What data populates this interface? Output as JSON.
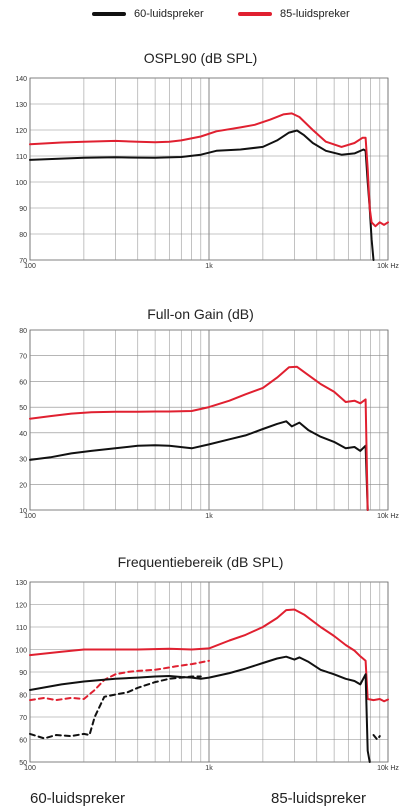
{
  "legend": {
    "series_a": "60-luidspreker",
    "series_b": "85-luidspreker",
    "color_a": "#111111",
    "color_b": "#e02030"
  },
  "footer": {
    "left": "60-luidspreker",
    "right": "85-luidspreker"
  },
  "chart_data": [
    {
      "type": "line",
      "title": "OSPL90 (dB SPL)",
      "xscale": "log",
      "xlim": [
        100,
        10000
      ],
      "ylim": [
        70,
        140
      ],
      "xticks": [
        "100",
        "1k",
        "10k Hz"
      ],
      "yticks": [
        70,
        80,
        90,
        100,
        110,
        120,
        130,
        140
      ],
      "series": [
        {
          "name": "60-luidspreker",
          "style": "solid",
          "color": "#111111",
          "points": [
            [
              100,
              108.5
            ],
            [
              150,
              109
            ],
            [
              200,
              109.3
            ],
            [
              300,
              109.5
            ],
            [
              400,
              109.4
            ],
            [
              500,
              109.3
            ],
            [
              700,
              109.6
            ],
            [
              900,
              110.5
            ],
            [
              1100,
              112
            ],
            [
              1500,
              112.5
            ],
            [
              2000,
              113.5
            ],
            [
              2400,
              116
            ],
            [
              2800,
              119
            ],
            [
              3100,
              119.8
            ],
            [
              3400,
              118
            ],
            [
              3800,
              115
            ],
            [
              4500,
              112
            ],
            [
              5500,
              110.5
            ],
            [
              6500,
              111
            ],
            [
              7300,
              112.5
            ],
            [
              7500,
              112
            ],
            [
              7700,
              100
            ],
            [
              7900,
              90
            ],
            [
              8100,
              78
            ],
            [
              8300,
              70
            ]
          ]
        },
        {
          "name": "85-luidspreker",
          "style": "solid",
          "color": "#e02030",
          "points": [
            [
              100,
              114.5
            ],
            [
              150,
              115.2
            ],
            [
              200,
              115.5
            ],
            [
              300,
              115.8
            ],
            [
              400,
              115.5
            ],
            [
              500,
              115.3
            ],
            [
              600,
              115.5
            ],
            [
              700,
              116
            ],
            [
              900,
              117.5
            ],
            [
              1100,
              119.5
            ],
            [
              1500,
              121
            ],
            [
              1800,
              122
            ],
            [
              2200,
              124
            ],
            [
              2600,
              126
            ],
            [
              2900,
              126.4
            ],
            [
              3200,
              125
            ],
            [
              3800,
              120
            ],
            [
              4500,
              115.5
            ],
            [
              5500,
              113.5
            ],
            [
              6500,
              115
            ],
            [
              7200,
              117
            ],
            [
              7500,
              117
            ],
            [
              7700,
              105
            ],
            [
              7900,
              90
            ],
            [
              8100,
              84.5
            ],
            [
              8500,
              83
            ],
            [
              9000,
              84.5
            ],
            [
              9500,
              83.5
            ],
            [
              10000,
              84.5
            ]
          ]
        }
      ]
    },
    {
      "type": "line",
      "title": "Full-on Gain (dB)",
      "xscale": "log",
      "xlim": [
        100,
        10000
      ],
      "ylim": [
        10,
        80
      ],
      "xticks": [
        "100",
        "1k",
        "10k Hz"
      ],
      "yticks": [
        10,
        20,
        30,
        40,
        50,
        60,
        70,
        80
      ],
      "series": [
        {
          "name": "60-luidspreker",
          "style": "solid",
          "color": "#111111",
          "points": [
            [
              100,
              29.5
            ],
            [
              130,
              30.5
            ],
            [
              170,
              32
            ],
            [
              220,
              33
            ],
            [
              300,
              34
            ],
            [
              400,
              35
            ],
            [
              500,
              35.2
            ],
            [
              600,
              35
            ],
            [
              800,
              34
            ],
            [
              1000,
              35.5
            ],
            [
              1300,
              37.5
            ],
            [
              1600,
              39
            ],
            [
              2000,
              41.5
            ],
            [
              2400,
              43.5
            ],
            [
              2700,
              44.5
            ],
            [
              2900,
              42.5
            ],
            [
              3200,
              44
            ],
            [
              3600,
              41
            ],
            [
              4200,
              38.5
            ],
            [
              5000,
              36.5
            ],
            [
              5800,
              34
            ],
            [
              6500,
              34.5
            ],
            [
              7000,
              33
            ],
            [
              7500,
              35
            ],
            [
              7700,
              10
            ]
          ]
        },
        {
          "name": "85-luidspreker",
          "style": "solid",
          "color": "#e02030",
          "points": [
            [
              100,
              45.5
            ],
            [
              130,
              46.5
            ],
            [
              170,
              47.5
            ],
            [
              220,
              48
            ],
            [
              300,
              48.2
            ],
            [
              400,
              48.2
            ],
            [
              500,
              48.3
            ],
            [
              600,
              48.3
            ],
            [
              800,
              48.5
            ],
            [
              1000,
              50
            ],
            [
              1300,
              52.5
            ],
            [
              1600,
              55
            ],
            [
              2000,
              57.5
            ],
            [
              2400,
              61.5
            ],
            [
              2800,
              65.5
            ],
            [
              3100,
              65.7
            ],
            [
              3500,
              63
            ],
            [
              4200,
              59
            ],
            [
              5000,
              56
            ],
            [
              5800,
              52
            ],
            [
              6500,
              52.5
            ],
            [
              7000,
              51.5
            ],
            [
              7500,
              53
            ],
            [
              7700,
              10
            ]
          ]
        }
      ]
    },
    {
      "type": "line",
      "title": "Frequentiebereik (dB SPL)",
      "xscale": "log",
      "xlim": [
        100,
        10000
      ],
      "ylim": [
        50,
        130
      ],
      "xticks": [
        "100",
        "1k",
        "10k Hz"
      ],
      "yticks": [
        50,
        60,
        70,
        80,
        90,
        100,
        110,
        120,
        130
      ],
      "series": [
        {
          "name": "85-luidspreker",
          "style": "solid",
          "color": "#e02030",
          "points": [
            [
              100,
              97.5
            ],
            [
              150,
              99
            ],
            [
              200,
              100
            ],
            [
              300,
              100
            ],
            [
              400,
              100
            ],
            [
              600,
              100.3
            ],
            [
              800,
              100
            ],
            [
              1000,
              100.5
            ],
            [
              1300,
              104
            ],
            [
              1600,
              106.5
            ],
            [
              2000,
              110
            ],
            [
              2400,
              114
            ],
            [
              2700,
              117.5
            ],
            [
              3000,
              117.8
            ],
            [
              3400,
              115.5
            ],
            [
              4200,
              110
            ],
            [
              5000,
              106
            ],
            [
              5800,
              102
            ],
            [
              6500,
              99.5
            ],
            [
              7000,
              97
            ],
            [
              7500,
              95
            ],
            [
              7700,
              78
            ],
            [
              8300,
              77.5
            ],
            [
              9000,
              78
            ],
            [
              9500,
              77
            ],
            [
              10000,
              77.8
            ]
          ]
        },
        {
          "name": "85-luidspreker",
          "style": "dashed",
          "color": "#e02030",
          "points": [
            [
              100,
              77.5
            ],
            [
              120,
              78.5
            ],
            [
              140,
              77.5
            ],
            [
              170,
              78.5
            ],
            [
              200,
              78
            ],
            [
              230,
              82
            ],
            [
              260,
              86.5
            ],
            [
              300,
              89
            ],
            [
              350,
              90
            ],
            [
              400,
              90.5
            ],
            [
              500,
              91
            ],
            [
              650,
              92.5
            ],
            [
              800,
              93.5
            ],
            [
              1000,
              95
            ]
          ]
        },
        {
          "name": "60-luidspreker",
          "style": "solid",
          "color": "#111111",
          "points": [
            [
              100,
              82
            ],
            [
              150,
              84.5
            ],
            [
              200,
              85.8
            ],
            [
              300,
              87
            ],
            [
              400,
              87.5
            ],
            [
              500,
              88
            ],
            [
              600,
              88.2
            ],
            [
              700,
              87.8
            ],
            [
              800,
              87.5
            ],
            [
              900,
              87
            ],
            [
              1000,
              87.5
            ],
            [
              1300,
              89.5
            ],
            [
              1600,
              91.5
            ],
            [
              2000,
              94
            ],
            [
              2400,
              96
            ],
            [
              2700,
              96.8
            ],
            [
              3000,
              95.5
            ],
            [
              3200,
              96.5
            ],
            [
              3600,
              94.5
            ],
            [
              4200,
              91
            ],
            [
              5000,
              89
            ],
            [
              5800,
              87
            ],
            [
              6500,
              86
            ],
            [
              7000,
              84.5
            ],
            [
              7500,
              89
            ],
            [
              7700,
              55
            ],
            [
              7900,
              50
            ]
          ]
        },
        {
          "name": "60-luidspreker",
          "style": "dashed",
          "color": "#111111",
          "points": [
            [
              100,
              62.5
            ],
            [
              120,
              60.5
            ],
            [
              140,
              62
            ],
            [
              170,
              61.5
            ],
            [
              200,
              62.5
            ],
            [
              215,
              62
            ],
            [
              230,
              70
            ],
            [
              260,
              79
            ],
            [
              300,
              80
            ],
            [
              350,
              81
            ],
            [
              400,
              83
            ],
            [
              500,
              85.5
            ],
            [
              600,
              87
            ],
            [
              700,
              87.5
            ],
            [
              800,
              88
            ],
            [
              900,
              88
            ]
          ]
        },
        {
          "name": "60-luidspreker",
          "style": "dashed",
          "color": "#111111",
          "points": [
            [
              8300,
              62
            ],
            [
              8700,
              60
            ],
            [
              9000,
              61.5
            ]
          ]
        }
      ]
    }
  ]
}
